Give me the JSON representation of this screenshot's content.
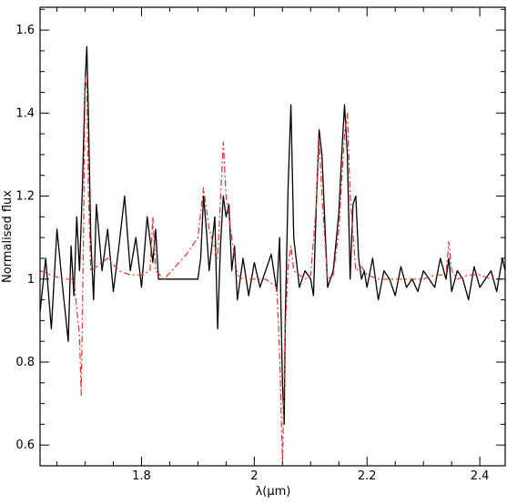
{
  "chart_data": {
    "type": "line",
    "title": "",
    "xlabel": "λ(μm)",
    "ylabel": "Normalised flux",
    "xlim": [
      1.62,
      2.445
    ],
    "ylim": [
      0.55,
      1.655
    ],
    "xticks": [
      1.8,
      2,
      2.2,
      2.4
    ],
    "xtick_labels": [
      "1.8",
      "2",
      "2.2",
      "2.4"
    ],
    "yticks": [
      0.6,
      0.8,
      1,
      1.2,
      1.4,
      1.6
    ],
    "ytick_labels": [
      "0.6",
      "0.8",
      "1",
      "1.2",
      "1.4",
      "1.6"
    ],
    "grid": false,
    "legend": "none",
    "series": [
      {
        "style": "solid",
        "color": "#000000",
        "x": [
          1.62,
          1.63,
          1.64,
          1.65,
          1.66,
          1.67,
          1.675,
          1.68,
          1.685,
          1.69,
          1.695,
          1.7,
          1.703,
          1.706,
          1.71,
          1.715,
          1.72,
          1.73,
          1.74,
          1.75,
          1.76,
          1.77,
          1.78,
          1.79,
          1.8,
          1.81,
          1.82,
          1.825,
          1.83,
          1.84,
          1.85,
          1.9,
          1.905,
          1.91,
          1.915,
          1.92,
          1.93,
          1.935,
          1.94,
          1.945,
          1.95,
          1.955,
          1.96,
          1.965,
          1.97,
          1.98,
          1.99,
          2.0,
          2.01,
          2.02,
          2.03,
          2.04,
          2.045,
          2.05,
          2.053,
          2.055,
          2.06,
          2.065,
          2.07,
          2.08,
          2.09,
          2.1,
          2.105,
          2.11,
          2.115,
          2.12,
          2.13,
          2.14,
          2.15,
          2.155,
          2.16,
          2.165,
          2.17,
          2.175,
          2.18,
          2.185,
          2.19,
          2.195,
          2.2,
          2.21,
          2.22,
          2.23,
          2.24,
          2.25,
          2.26,
          2.27,
          2.28,
          2.29,
          2.3,
          2.31,
          2.32,
          2.33,
          2.34,
          2.345,
          2.35,
          2.36,
          2.37,
          2.38,
          2.39,
          2.4,
          2.41,
          2.42,
          2.43,
          2.44,
          2.445
        ],
        "y": [
          0.92,
          1.05,
          0.88,
          1.12,
          0.98,
          0.85,
          1.08,
          0.96,
          1.15,
          1.02,
          1.22,
          1.48,
          1.56,
          1.38,
          1.1,
          0.95,
          1.18,
          1.02,
          1.12,
          0.97,
          1.08,
          1.2,
          1.02,
          1.1,
          0.98,
          1.15,
          1.04,
          1.12,
          1.0,
          1.0,
          1.0,
          1.0,
          1.05,
          1.2,
          1.12,
          1.02,
          1.15,
          0.88,
          1.08,
          1.2,
          1.15,
          1.18,
          1.02,
          1.08,
          0.95,
          1.05,
          0.96,
          1.04,
          0.98,
          1.02,
          1.06,
          0.97,
          1.1,
          0.75,
          0.65,
          0.9,
          1.22,
          1.42,
          1.1,
          0.98,
          1.02,
          1.0,
          0.96,
          1.18,
          1.36,
          1.3,
          0.98,
          1.02,
          1.16,
          1.3,
          1.42,
          1.3,
          1.0,
          1.18,
          1.2,
          1.05,
          1.0,
          1.02,
          0.98,
          1.05,
          0.95,
          1.02,
          1.0,
          0.96,
          1.03,
          0.98,
          1.0,
          0.97,
          1.02,
          1.0,
          0.98,
          1.05,
          1.0,
          1.05,
          0.97,
          1.02,
          1.0,
          0.95,
          1.03,
          0.98,
          1.0,
          1.02,
          0.97,
          1.05,
          1.02
        ]
      },
      {
        "style": "dash-dot",
        "color": "#e8322c",
        "x": [
          1.62,
          1.64,
          1.66,
          1.68,
          1.69,
          1.693,
          1.697,
          1.7,
          1.703,
          1.706,
          1.71,
          1.72,
          1.74,
          1.76,
          1.78,
          1.8,
          1.815,
          1.82,
          1.825,
          1.84,
          1.86,
          1.88,
          1.9,
          1.91,
          1.92,
          1.935,
          1.945,
          1.95,
          1.96,
          1.97,
          1.98,
          2.0,
          2.02,
          2.04,
          2.045,
          2.05,
          2.055,
          2.06,
          2.065,
          2.07,
          2.09,
          2.1,
          2.11,
          2.115,
          2.12,
          2.13,
          2.14,
          2.15,
          2.16,
          2.165,
          2.17,
          2.18,
          2.19,
          2.2,
          2.22,
          2.24,
          2.26,
          2.28,
          2.3,
          2.32,
          2.34,
          2.345,
          2.35,
          2.36,
          2.38,
          2.4,
          2.42,
          2.445
        ],
        "y": [
          1.02,
          1.01,
          1.0,
          1.0,
          0.86,
          0.72,
          1.1,
          1.49,
          1.46,
          1.2,
          1.02,
          1.03,
          1.05,
          1.02,
          1.01,
          1.01,
          1.02,
          1.15,
          1.02,
          1.0,
          1.03,
          1.06,
          1.1,
          1.22,
          1.12,
          1.05,
          1.33,
          1.2,
          1.1,
          1.01,
          1.0,
          1.0,
          1.0,
          0.98,
          0.82,
          0.56,
          0.88,
          1.03,
          1.08,
          1.02,
          1.0,
          1.01,
          1.18,
          1.34,
          1.2,
          1.0,
          1.01,
          1.12,
          1.35,
          1.4,
          1.2,
          1.02,
          1.03,
          1.01,
          1.0,
          1.0,
          1.0,
          1.0,
          1.0,
          1.01,
          1.01,
          1.09,
          1.02,
          1.0,
          1.01,
          1.01,
          1.0,
          1.0
        ]
      }
    ]
  }
}
